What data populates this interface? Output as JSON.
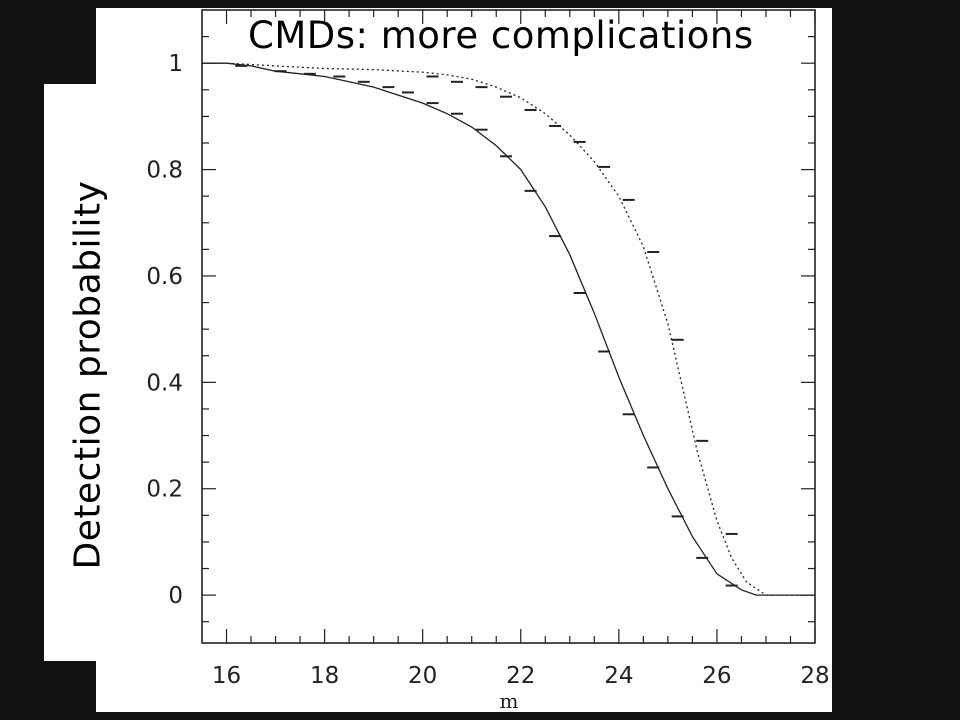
{
  "slide": {
    "title": "CMDs: more complications"
  },
  "chart_data": {
    "type": "line",
    "title": "",
    "xlabel": "m",
    "ylabel": "Detection probability",
    "xlim": [
      15.5,
      28
    ],
    "ylim": [
      -0.09,
      1.1
    ],
    "xticks": [
      16,
      18,
      20,
      22,
      24,
      26,
      28
    ],
    "yticks": [
      0,
      0.2,
      0.4,
      0.6,
      0.8,
      1
    ],
    "ytick_labels": [
      "0",
      "0.2",
      "0.4",
      "0.6",
      "0.8",
      "1"
    ],
    "grid": false,
    "series": [
      {
        "style": "solid",
        "x": [
          15.5,
          16.0,
          16.5,
          17.0,
          17.5,
          18.0,
          18.5,
          19.0,
          19.5,
          20.0,
          20.5,
          21.0,
          21.5,
          22.0,
          22.5,
          23.0,
          23.5,
          24.0,
          24.5,
          25.0,
          25.5,
          26.0,
          26.5,
          26.8,
          27.0,
          27.5,
          28.0
        ],
        "y": [
          1.0,
          1.0,
          0.995,
          0.985,
          0.98,
          0.975,
          0.965,
          0.955,
          0.94,
          0.925,
          0.905,
          0.88,
          0.845,
          0.8,
          0.73,
          0.64,
          0.53,
          0.41,
          0.3,
          0.2,
          0.11,
          0.04,
          0.01,
          0.0,
          0.0,
          0.0,
          0.0
        ],
        "error_bars_x": [
          16.3,
          17.1,
          17.7,
          18.3,
          18.8,
          19.3,
          19.7,
          20.2,
          20.7,
          21.2,
          21.7,
          22.2,
          22.7,
          23.2,
          23.7,
          24.2,
          24.7,
          25.2,
          25.7,
          26.3
        ],
        "error_bars_y": [
          0.995,
          0.985,
          0.98,
          0.975,
          0.965,
          0.955,
          0.945,
          0.925,
          0.905,
          0.875,
          0.825,
          0.76,
          0.675,
          0.568,
          0.458,
          0.34,
          0.24,
          0.148,
          0.07,
          0.018
        ]
      },
      {
        "style": "dotted",
        "x": [
          15.5,
          16.0,
          17.0,
          18.0,
          19.0,
          20.0,
          20.5,
          21.0,
          21.5,
          22.0,
          22.5,
          23.0,
          23.5,
          24.0,
          24.5,
          25.0,
          25.3,
          25.6,
          26.0,
          26.3,
          26.6,
          27.0,
          27.5,
          28.0
        ],
        "y": [
          1.0,
          1.0,
          0.995,
          0.99,
          0.988,
          0.983,
          0.978,
          0.97,
          0.955,
          0.935,
          0.905,
          0.865,
          0.815,
          0.75,
          0.655,
          0.51,
          0.39,
          0.27,
          0.14,
          0.07,
          0.025,
          0.0,
          0.0,
          0.0
        ],
        "error_bars_x": [
          20.2,
          20.7,
          21.2,
          21.7,
          22.2,
          22.7,
          23.2,
          23.7,
          24.2,
          24.7,
          25.2,
          25.7,
          26.3
        ],
        "error_bars_y": [
          0.975,
          0.965,
          0.955,
          0.937,
          0.912,
          0.882,
          0.852,
          0.805,
          0.743,
          0.645,
          0.48,
          0.29,
          0.115
        ]
      }
    ]
  }
}
